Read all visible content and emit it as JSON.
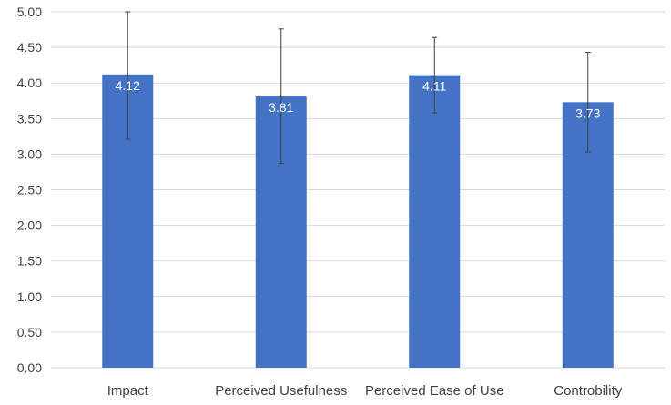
{
  "chart_data": {
    "type": "bar",
    "title": "",
    "xlabel": "",
    "ylabel": "",
    "categories": [
      "Impact",
      "Perceived Usefulness",
      "Perceived Ease of Use",
      "Controbility"
    ],
    "values": [
      4.12,
      3.81,
      4.11,
      3.73
    ],
    "value_labels": [
      "4.12",
      "3.81",
      "4.11",
      "3.73"
    ],
    "error_bars": [
      {
        "low": 3.21,
        "high": 5.0
      },
      {
        "low": 2.87,
        "high": 4.76
      },
      {
        "low": 3.58,
        "high": 4.64
      },
      {
        "low": 3.03,
        "high": 4.43
      }
    ],
    "ylim": [
      0,
      5
    ],
    "yticks": [
      0,
      0.5,
      1,
      1.5,
      2,
      2.5,
      3,
      3.5,
      4,
      4.5,
      5
    ],
    "ytick_labels": [
      "0.00",
      "0.50",
      "1.00",
      "1.50",
      "2.00",
      "2.50",
      "3.00",
      "3.50",
      "4.00",
      "4.50",
      "5.00"
    ],
    "grid": true,
    "legend": "none",
    "colors": {
      "bar": "#4472C4",
      "grid": "#d9d9d9",
      "error_bar": "#404040",
      "axis_text": "#404040",
      "value_label": "#ffffff"
    }
  }
}
